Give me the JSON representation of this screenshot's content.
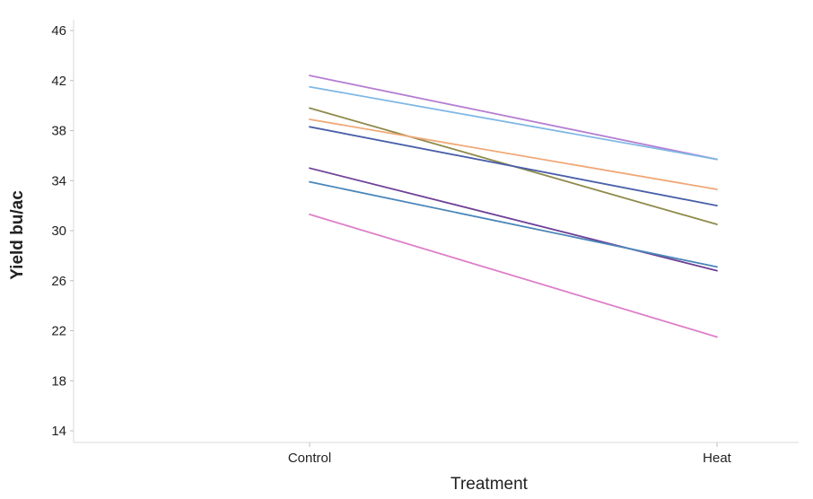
{
  "chart_data": {
    "type": "line",
    "xlabel": "Treatment",
    "ylabel": "Yield bu/ac",
    "categories": [
      "Control",
      "Heat"
    ],
    "ylim": [
      14,
      46
    ],
    "yticks": [
      14,
      18,
      22,
      26,
      30,
      34,
      38,
      42,
      46
    ],
    "grid": false,
    "legend": "none",
    "series": [
      {
        "values": [
          42.4,
          35.7
        ],
        "color": "#b57fd1"
      },
      {
        "values": [
          41.5,
          35.7
        ],
        "color": "#7fb8e6"
      },
      {
        "values": [
          39.8,
          30.5
        ],
        "color": "#8f8a4a"
      },
      {
        "values": [
          38.9,
          33.3
        ],
        "color": "#f0a878"
      },
      {
        "values": [
          38.3,
          32.0
        ],
        "color": "#4a5fa8"
      },
      {
        "values": [
          35.0,
          26.8
        ],
        "color": "#6e3f96"
      },
      {
        "values": [
          33.9,
          27.1
        ],
        "color": "#4a86b8"
      },
      {
        "values": [
          31.3,
          21.5
        ],
        "color": "#dd7fc8"
      }
    ]
  }
}
